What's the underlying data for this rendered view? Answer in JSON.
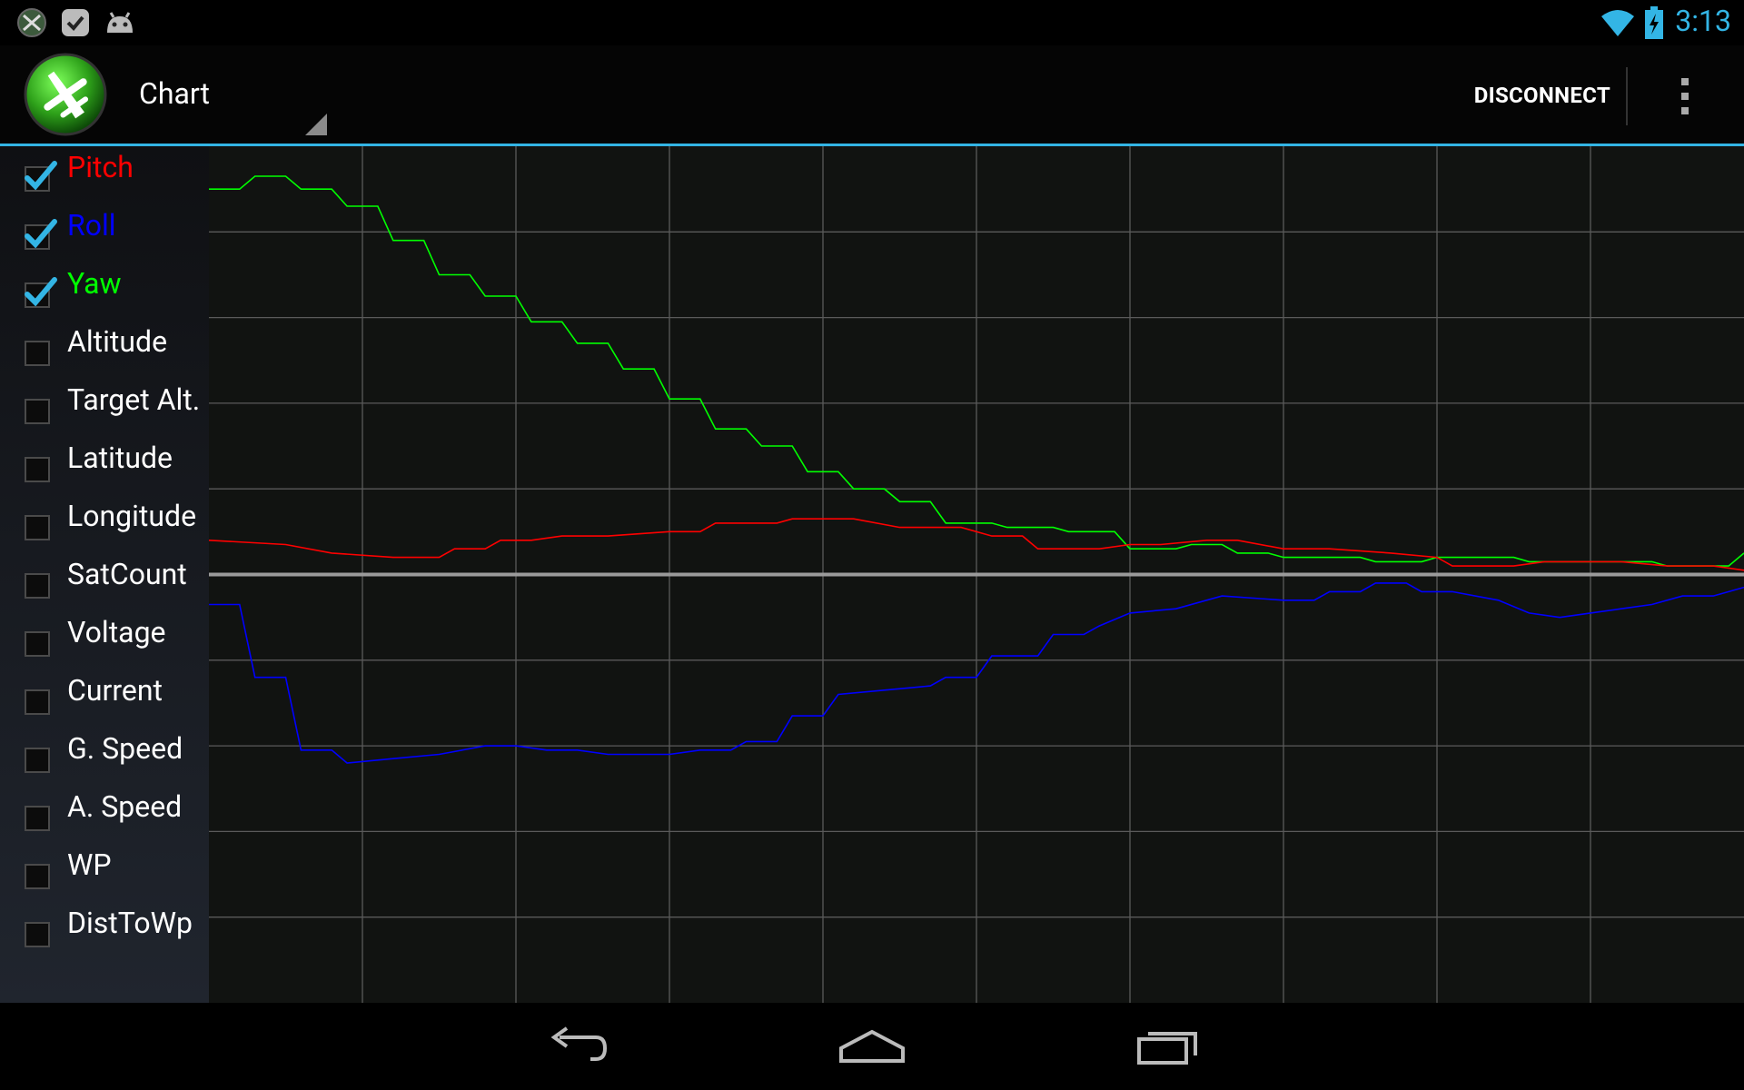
{
  "status_bar": {
    "time": "3:13",
    "left_icons": [
      "plane-notification-icon",
      "check-notification-icon",
      "android-debug-icon"
    ],
    "right_icons": [
      "wifi-icon",
      "battery-charging-icon"
    ]
  },
  "action_bar": {
    "title": "Chart",
    "disconnect_label": "DISCONNECT",
    "accent_color": "#33b5e5"
  },
  "sidebar": {
    "items": [
      {
        "label": "Pitch",
        "checked": true,
        "color": "#ff0000"
      },
      {
        "label": "Roll",
        "checked": true,
        "color": "#0000ff"
      },
      {
        "label": "Yaw",
        "checked": true,
        "color": "#00ff00"
      },
      {
        "label": "Altitude",
        "checked": false,
        "color": "#ffffff"
      },
      {
        "label": "Target Alt.",
        "checked": false,
        "color": "#ffffff"
      },
      {
        "label": "Latitude",
        "checked": false,
        "color": "#ffffff"
      },
      {
        "label": "Longitude",
        "checked": false,
        "color": "#ffffff"
      },
      {
        "label": "SatCount",
        "checked": false,
        "color": "#ffffff"
      },
      {
        "label": "Voltage",
        "checked": false,
        "color": "#ffffff"
      },
      {
        "label": "Current",
        "checked": false,
        "color": "#ffffff"
      },
      {
        "label": "G. Speed",
        "checked": false,
        "color": "#ffffff"
      },
      {
        "label": "A. Speed",
        "checked": false,
        "color": "#ffffff"
      },
      {
        "label": "WP",
        "checked": false,
        "color": "#ffffff"
      },
      {
        "label": "DistToWp",
        "checked": false,
        "color": "#ffffff"
      }
    ]
  },
  "chart_data": {
    "type": "line",
    "title": "",
    "xlabel": "",
    "ylabel": "",
    "grid": true,
    "xlim": [
      0,
      100
    ],
    "ylim": [
      -5,
      5
    ],
    "series": [
      {
        "name": "Yaw",
        "color": "#00ff00",
        "points": [
          [
            0,
            4.5
          ],
          [
            2,
            4.5
          ],
          [
            3,
            4.65
          ],
          [
            5,
            4.65
          ],
          [
            6,
            4.5
          ],
          [
            8,
            4.5
          ],
          [
            9,
            4.3
          ],
          [
            11,
            4.3
          ],
          [
            12,
            3.9
          ],
          [
            14,
            3.9
          ],
          [
            15,
            3.5
          ],
          [
            17,
            3.5
          ],
          [
            18,
            3.25
          ],
          [
            20,
            3.25
          ],
          [
            21,
            2.95
          ],
          [
            23,
            2.95
          ],
          [
            24,
            2.7
          ],
          [
            26,
            2.7
          ],
          [
            27,
            2.4
          ],
          [
            29,
            2.4
          ],
          [
            30,
            2.05
          ],
          [
            32,
            2.05
          ],
          [
            33,
            1.7
          ],
          [
            35,
            1.7
          ],
          [
            36,
            1.5
          ],
          [
            38,
            1.5
          ],
          [
            39,
            1.2
          ],
          [
            41,
            1.2
          ],
          [
            42,
            1.0
          ],
          [
            44,
            1.0
          ],
          [
            45,
            0.85
          ],
          [
            47,
            0.85
          ],
          [
            48,
            0.6
          ],
          [
            51,
            0.6
          ],
          [
            52,
            0.55
          ],
          [
            55,
            0.55
          ],
          [
            56,
            0.5
          ],
          [
            59,
            0.5
          ],
          [
            60,
            0.3
          ],
          [
            63,
            0.3
          ],
          [
            64,
            0.35
          ],
          [
            66,
            0.35
          ],
          [
            67,
            0.25
          ],
          [
            69,
            0.25
          ],
          [
            70,
            0.2
          ],
          [
            75,
            0.2
          ],
          [
            76,
            0.15
          ],
          [
            79,
            0.15
          ],
          [
            80,
            0.2
          ],
          [
            85,
            0.2
          ],
          [
            86,
            0.15
          ],
          [
            94,
            0.15
          ],
          [
            95,
            0.1
          ],
          [
            99,
            0.1
          ],
          [
            100,
            0.25
          ]
        ]
      },
      {
        "name": "Pitch",
        "color": "#ff0000",
        "points": [
          [
            0,
            0.4
          ],
          [
            5,
            0.35
          ],
          [
            8,
            0.25
          ],
          [
            12,
            0.2
          ],
          [
            15,
            0.2
          ],
          [
            16,
            0.3
          ],
          [
            18,
            0.3
          ],
          [
            19,
            0.4
          ],
          [
            21,
            0.4
          ],
          [
            23,
            0.45
          ],
          [
            26,
            0.45
          ],
          [
            30,
            0.5
          ],
          [
            32,
            0.5
          ],
          [
            33,
            0.6
          ],
          [
            37,
            0.6
          ],
          [
            38,
            0.65
          ],
          [
            42,
            0.65
          ],
          [
            45,
            0.55
          ],
          [
            49,
            0.55
          ],
          [
            51,
            0.45
          ],
          [
            53,
            0.45
          ],
          [
            54,
            0.3
          ],
          [
            58,
            0.3
          ],
          [
            60,
            0.35
          ],
          [
            62,
            0.35
          ],
          [
            65,
            0.4
          ],
          [
            67,
            0.4
          ],
          [
            70,
            0.3
          ],
          [
            73,
            0.3
          ],
          [
            77,
            0.25
          ],
          [
            80,
            0.2
          ],
          [
            81,
            0.1
          ],
          [
            85,
            0.1
          ],
          [
            87,
            0.15
          ],
          [
            92,
            0.15
          ],
          [
            95,
            0.1
          ],
          [
            98,
            0.1
          ],
          [
            100,
            0.05
          ]
        ]
      },
      {
        "name": "Roll",
        "color": "#0000ff",
        "points": [
          [
            0,
            -0.35
          ],
          [
            2,
            -0.35
          ],
          [
            3,
            -1.2
          ],
          [
            5,
            -1.2
          ],
          [
            6,
            -2.05
          ],
          [
            8,
            -2.05
          ],
          [
            9,
            -2.2
          ],
          [
            12,
            -2.15
          ],
          [
            15,
            -2.1
          ],
          [
            18,
            -2.0
          ],
          [
            20,
            -2.0
          ],
          [
            22,
            -2.05
          ],
          [
            24,
            -2.05
          ],
          [
            26,
            -2.1
          ],
          [
            30,
            -2.1
          ],
          [
            32,
            -2.05
          ],
          [
            34,
            -2.05
          ],
          [
            35,
            -1.95
          ],
          [
            37,
            -1.95
          ],
          [
            38,
            -1.65
          ],
          [
            40,
            -1.65
          ],
          [
            41,
            -1.4
          ],
          [
            44,
            -1.35
          ],
          [
            47,
            -1.3
          ],
          [
            48,
            -1.2
          ],
          [
            50,
            -1.2
          ],
          [
            51,
            -0.95
          ],
          [
            54,
            -0.95
          ],
          [
            55,
            -0.7
          ],
          [
            57,
            -0.7
          ],
          [
            58,
            -0.6
          ],
          [
            60,
            -0.45
          ],
          [
            63,
            -0.4
          ],
          [
            66,
            -0.25
          ],
          [
            70,
            -0.3
          ],
          [
            72,
            -0.3
          ],
          [
            73,
            -0.2
          ],
          [
            75,
            -0.2
          ],
          [
            76,
            -0.1
          ],
          [
            78,
            -0.1
          ],
          [
            79,
            -0.2
          ],
          [
            81,
            -0.2
          ],
          [
            84,
            -0.3
          ],
          [
            86,
            -0.45
          ],
          [
            88,
            -0.5
          ],
          [
            90,
            -0.45
          ],
          [
            92,
            -0.4
          ],
          [
            94,
            -0.35
          ],
          [
            96,
            -0.25
          ],
          [
            98,
            -0.25
          ],
          [
            100,
            -0.15
          ]
        ]
      }
    ]
  },
  "nav_bar": {
    "icons": [
      "back-icon",
      "home-icon",
      "recent-apps-icon"
    ]
  }
}
